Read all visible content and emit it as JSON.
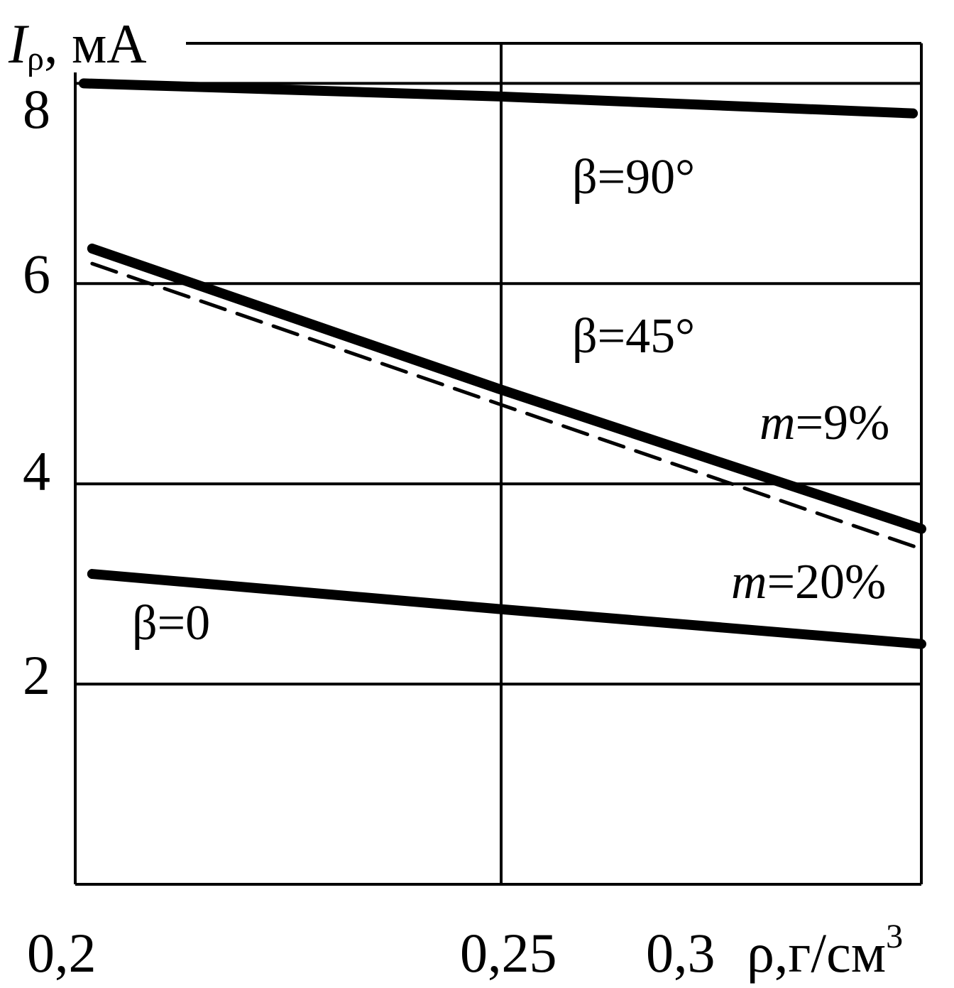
{
  "chart_data": {
    "type": "line",
    "title": "",
    "ylabel": {
      "symbol": "I",
      "subscript": "ρ",
      "unit": ", мА"
    },
    "xlabel": {
      "text": "ρ,г/см",
      "sup": "3"
    },
    "x_ticks": [
      "0,2",
      "0,25",
      "0,3"
    ],
    "y_ticks": [
      "2",
      "4",
      "6",
      "8"
    ],
    "xlim": [
      0.2,
      0.3
    ],
    "ylim": [
      0,
      8.4
    ],
    "grid": true,
    "series": [
      {
        "name": "β=90°",
        "style": "solid-thick",
        "x": [
          0.201,
          0.25,
          0.299
        ],
        "y": [
          8.0,
          7.87,
          7.7
        ]
      },
      {
        "name": "β=45°",
        "style": "solid-thick",
        "x": [
          0.202,
          0.25,
          0.3
        ],
        "y": [
          6.35,
          4.95,
          3.55
        ]
      },
      {
        "name": "",
        "style": "dashed",
        "x": [
          0.202,
          0.25,
          0.3
        ],
        "y": [
          6.2,
          4.8,
          3.35
        ]
      },
      {
        "name": "β=0",
        "style": "solid-thick",
        "x": [
          0.202,
          0.25,
          0.3
        ],
        "y": [
          3.1,
          2.75,
          2.4
        ]
      }
    ],
    "annotations": {
      "b90": "β=90°",
      "b45": "β=45°",
      "b0": "β=0",
      "m9": {
        "var": "m",
        "rest": "=9%"
      },
      "m20": {
        "var": "m",
        "rest": "=20%"
      }
    }
  }
}
